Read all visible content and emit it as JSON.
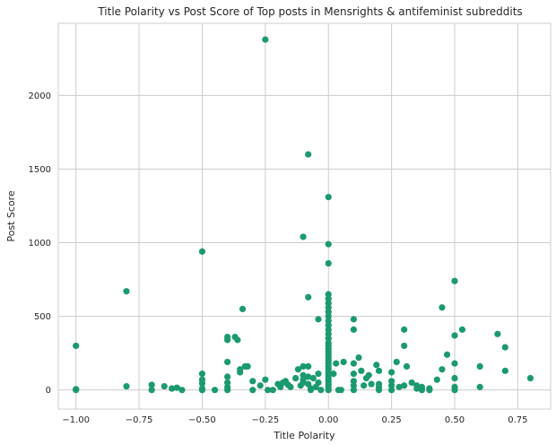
{
  "chart_data": {
    "type": "scatter",
    "title": "Title Polarity vs Post Score of Top posts in Mensrights & antifeminist subreddits",
    "xlabel": "Title Polarity",
    "ylabel": "Post Score",
    "xlim": [
      -1.07,
      0.88
    ],
    "ylim": [
      -130,
      2490
    ],
    "xticks": [
      -1.0,
      -0.75,
      -0.5,
      -0.25,
      0.0,
      0.25,
      0.5,
      0.75
    ],
    "xtick_labels": [
      "−1.00",
      "−0.75",
      "−0.50",
      "−0.25",
      "0.00",
      "0.25",
      "0.50",
      "0.75"
    ],
    "yticks": [
      0,
      500,
      1000,
      1500,
      2000
    ],
    "ytick_labels": [
      "0",
      "500",
      "1000",
      "1500",
      "2000"
    ],
    "grid": true,
    "marker_color": "#1b9a6e",
    "points": [
      [
        -1.0,
        300
      ],
      [
        -1.0,
        5
      ],
      [
        -1.0,
        0
      ],
      [
        -0.8,
        670
      ],
      [
        -0.8,
        25
      ],
      [
        -0.7,
        35
      ],
      [
        -0.7,
        0
      ],
      [
        -0.65,
        25
      ],
      [
        -0.62,
        10
      ],
      [
        -0.6,
        15
      ],
      [
        -0.58,
        0
      ],
      [
        -0.5,
        940
      ],
      [
        -0.5,
        110
      ],
      [
        -0.5,
        70
      ],
      [
        -0.5,
        45
      ],
      [
        -0.5,
        10
      ],
      [
        -0.5,
        0
      ],
      [
        -0.45,
        0
      ],
      [
        -0.4,
        360
      ],
      [
        -0.4,
        340
      ],
      [
        -0.4,
        190
      ],
      [
        -0.4,
        90
      ],
      [
        -0.4,
        50
      ],
      [
        -0.4,
        20
      ],
      [
        -0.4,
        0
      ],
      [
        -0.37,
        360
      ],
      [
        -0.36,
        340
      ],
      [
        -0.35,
        140
      ],
      [
        -0.35,
        120
      ],
      [
        -0.34,
        550
      ],
      [
        -0.33,
        160
      ],
      [
        -0.32,
        160
      ],
      [
        -0.3,
        60
      ],
      [
        -0.3,
        0
      ],
      [
        -0.27,
        30
      ],
      [
        -0.25,
        2380
      ],
      [
        -0.25,
        70
      ],
      [
        -0.24,
        0
      ],
      [
        -0.22,
        0
      ],
      [
        -0.2,
        40
      ],
      [
        -0.19,
        20
      ],
      [
        -0.18,
        50
      ],
      [
        -0.17,
        60
      ],
      [
        -0.16,
        35
      ],
      [
        -0.15,
        20
      ],
      [
        -0.13,
        80
      ],
      [
        -0.12,
        140
      ],
      [
        -0.11,
        30
      ],
      [
        -0.1,
        1040
      ],
      [
        -0.1,
        160
      ],
      [
        -0.1,
        100
      ],
      [
        -0.1,
        70
      ],
      [
        -0.1,
        50
      ],
      [
        -0.08,
        1600
      ],
      [
        -0.08,
        630
      ],
      [
        -0.08,
        160
      ],
      [
        -0.08,
        90
      ],
      [
        -0.08,
        40
      ],
      [
        -0.07,
        10
      ],
      [
        -0.07,
        0
      ],
      [
        -0.06,
        80
      ],
      [
        -0.05,
        20
      ],
      [
        -0.04,
        480
      ],
      [
        -0.04,
        110
      ],
      [
        -0.04,
        50
      ],
      [
        -0.03,
        0
      ],
      [
        0.0,
        1310
      ],
      [
        0.0,
        990
      ],
      [
        0.0,
        860
      ],
      [
        0.0,
        650
      ],
      [
        0.0,
        620
      ],
      [
        0.0,
        590
      ],
      [
        0.0,
        560
      ],
      [
        0.0,
        530
      ],
      [
        0.0,
        500
      ],
      [
        0.0,
        470
      ],
      [
        0.0,
        440
      ],
      [
        0.0,
        410
      ],
      [
        0.0,
        380
      ],
      [
        0.0,
        350
      ],
      [
        0.0,
        320
      ],
      [
        0.0,
        300
      ],
      [
        0.0,
        280
      ],
      [
        0.0,
        260
      ],
      [
        0.0,
        240
      ],
      [
        0.0,
        220
      ],
      [
        0.0,
        200
      ],
      [
        0.0,
        180
      ],
      [
        0.0,
        160
      ],
      [
        0.0,
        140
      ],
      [
        0.0,
        120
      ],
      [
        0.0,
        100
      ],
      [
        0.0,
        80
      ],
      [
        0.0,
        60
      ],
      [
        0.0,
        40
      ],
      [
        0.0,
        20
      ],
      [
        0.0,
        0
      ],
      [
        0.02,
        110
      ],
      [
        0.03,
        180
      ],
      [
        0.04,
        0
      ],
      [
        0.05,
        0
      ],
      [
        0.06,
        190
      ],
      [
        0.1,
        480
      ],
      [
        0.1,
        410
      ],
      [
        0.1,
        180
      ],
      [
        0.1,
        110
      ],
      [
        0.1,
        60
      ],
      [
        0.1,
        30
      ],
      [
        0.1,
        0
      ],
      [
        0.12,
        220
      ],
      [
        0.13,
        130
      ],
      [
        0.14,
        30
      ],
      [
        0.15,
        80
      ],
      [
        0.16,
        100
      ],
      [
        0.17,
        40
      ],
      [
        0.19,
        170
      ],
      [
        0.2,
        130
      ],
      [
        0.2,
        40
      ],
      [
        0.2,
        20
      ],
      [
        0.2,
        0
      ],
      [
        0.25,
        120
      ],
      [
        0.25,
        60
      ],
      [
        0.25,
        30
      ],
      [
        0.25,
        0
      ],
      [
        0.27,
        190
      ],
      [
        0.28,
        20
      ],
      [
        0.3,
        410
      ],
      [
        0.3,
        300
      ],
      [
        0.3,
        30
      ],
      [
        0.31,
        160
      ],
      [
        0.33,
        50
      ],
      [
        0.35,
        10
      ],
      [
        0.35,
        30
      ],
      [
        0.37,
        0
      ],
      [
        0.37,
        20
      ],
      [
        0.4,
        10
      ],
      [
        0.4,
        0
      ],
      [
        0.43,
        70
      ],
      [
        0.45,
        560
      ],
      [
        0.45,
        140
      ],
      [
        0.47,
        240
      ],
      [
        0.5,
        740
      ],
      [
        0.5,
        370
      ],
      [
        0.5,
        180
      ],
      [
        0.5,
        80
      ],
      [
        0.5,
        20
      ],
      [
        0.5,
        0
      ],
      [
        0.53,
        410
      ],
      [
        0.6,
        160
      ],
      [
        0.6,
        20
      ],
      [
        0.67,
        380
      ],
      [
        0.7,
        290
      ],
      [
        0.7,
        130
      ],
      [
        0.8,
        80
      ]
    ]
  }
}
